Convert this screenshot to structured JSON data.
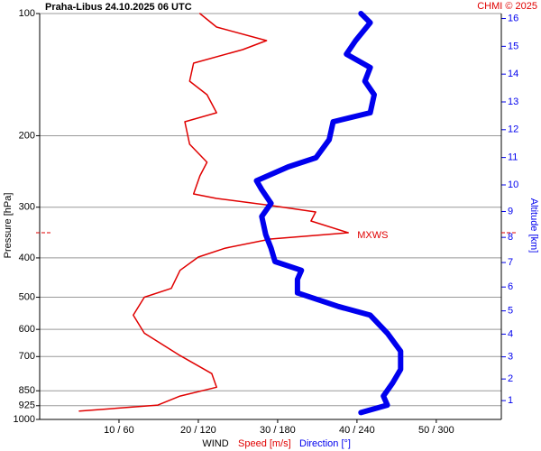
{
  "chart_data": {
    "type": "line",
    "title": "Praha-Libus    24.10.2025 06 UTC",
    "credit": "CHMI © 2025",
    "y_label": "Pressure [hPa]",
    "y2_label": "Altitude [km]",
    "x_label": "WIND",
    "ylim": [
      100,
      1000
    ],
    "log_y": true,
    "yticks": [
      100,
      200,
      300,
      400,
      500,
      600,
      700,
      850,
      925,
      1000
    ],
    "y2ticks": [
      1,
      2,
      3,
      4,
      5,
      6,
      7,
      8,
      9,
      10,
      11,
      12,
      13,
      14,
      15,
      16
    ],
    "xlim": [
      0,
      58.2
    ],
    "x2lim": [
      0,
      349.2
    ],
    "xticks": [
      {
        "value": 10,
        "label": "10 / 60"
      },
      {
        "value": 20,
        "label": "20 / 120"
      },
      {
        "value": 30,
        "label": "30 / 180"
      },
      {
        "value": 40,
        "label": "40 / 240"
      },
      {
        "value": 50,
        "label": "50 / 300"
      }
    ],
    "grid": true,
    "series": [
      {
        "name": "Speed [m/s]",
        "color": "#e00000",
        "pressure": [
          100,
          108,
          116.6,
          122.7,
          132.5,
          146.8,
          158.5,
          175.6,
          184.8,
          209.9,
          232.5,
          251.2,
          278.3,
          285.4,
          297,
          308.2,
          324.4,
          346.7,
          359.4,
          378.4,
          398.1,
          429.3,
          475.5,
          500,
          553.6,
          613.1,
          696,
          771,
          833,
          876,
          922,
          954
        ],
        "values": [
          20.2,
          22.3,
          28.6,
          25.6,
          19.4,
          18.9,
          21.1,
          22.3,
          18.3,
          18.9,
          21.1,
          20.2,
          19.4,
          22.3,
          29.1,
          34.8,
          34.2,
          38.9,
          29.1,
          23.4,
          20,
          17.7,
          16.6,
          13.2,
          11.8,
          13.2,
          17.7,
          21.7,
          22.3,
          17.7,
          14.9,
          5
        ]
      },
      {
        "name": "Direction [°]",
        "color": "#0000ee",
        "axis": "x2",
        "pressure": [
          100,
          105.3,
          116.6,
          125.9,
          135.9,
          146.8,
          158.5,
          175.6,
          184.8,
          204.5,
          226.6,
          238.6,
          258.2,
          271.6,
          293.4,
          316.2,
          350.4,
          378.4,
          408.4,
          429.3,
          451.8,
          487.9,
          526.9,
          553.6,
          613.1,
          679.3,
          752.6,
          812.8,
          876,
          922,
          962
        ],
        "values": [
          243,
          250,
          239,
          232,
          250,
          246,
          253,
          250,
          222,
          219,
          209,
          188,
          164,
          168,
          175,
          168,
          171,
          175,
          178,
          198,
          195,
          195,
          226,
          250,
          263,
          273,
          273,
          267,
          260,
          263,
          243
        ]
      }
    ],
    "annotations": [
      {
        "text": "MXWS",
        "pressure": 346.7
      }
    ]
  }
}
